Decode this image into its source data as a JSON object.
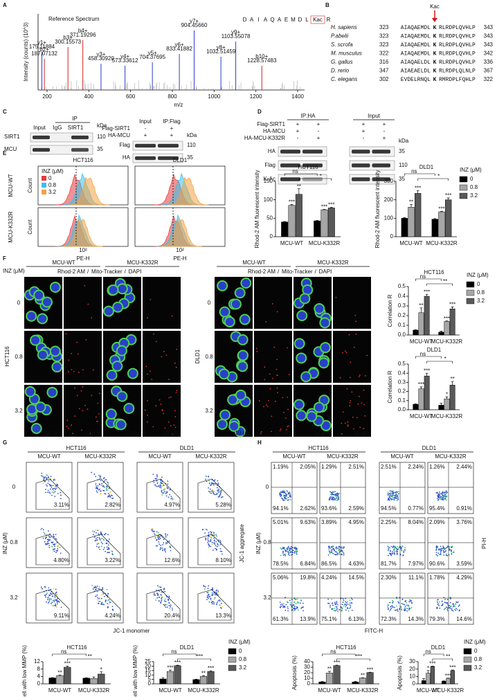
{
  "panels": {
    "A": {
      "letter": "A",
      "title": "Reference Spectrum",
      "y_label": "Intensity (counts) (10^3)",
      "x_label": "m/z",
      "x_ticks": [
        "200",
        "400",
        "600",
        "800",
        "1000",
        "1200",
        "1400"
      ],
      "sequence": [
        "D",
        "A",
        "I",
        "A",
        "Q",
        "A",
        "E",
        "M",
        "D",
        "L",
        "Kac",
        "R"
      ],
      "peaks": [
        {
          "label": "y1+",
          "mz": "175.11884"
        },
        {
          "label": "b2+",
          "mz": "187.07132"
        },
        {
          "label": "b3+",
          "mz": "300.15573"
        },
        {
          "label": "b4+",
          "mz": "371.19296"
        },
        {
          "label": "y3+",
          "mz": "458.30920"
        },
        {
          "label": "y4+",
          "mz": "573.33612"
        },
        {
          "label": "y5+",
          "mz": "704.37695"
        },
        {
          "label": "y6+",
          "mz": "833.41882"
        },
        {
          "label": "y7+",
          "mz": "904.45660"
        },
        {
          "label": "y8+",
          "mz": "1032.51459"
        },
        {
          "label": "y9+",
          "mz": "1103.55078"
        },
        {
          "label": "b10+",
          "mz": "1228.57483"
        }
      ]
    },
    "B": {
      "letter": "B",
      "marker": "Kac",
      "rows": [
        {
          "species": "H. sapiens",
          "start": "323",
          "left": "AIAQAEMDL",
          "site": "K",
          "right": "RLRDPLQVHLP",
          "end": "343"
        },
        {
          "species": "P.abelii",
          "start": "323",
          "left": "AIAQAEMDL",
          "site": "K",
          "right": "RLRDPLQVHLP",
          "end": "343"
        },
        {
          "species": "S. scrofa",
          "start": "323",
          "left": "AIAQAEMDL",
          "site": "K",
          "right": "RLRDPLQVHLP",
          "end": "343"
        },
        {
          "species": "M. musculus",
          "start": "322",
          "left": "AIAQAEMDL",
          "site": "K",
          "right": "RLRDPLQVHLP",
          "end": "342"
        },
        {
          "species": "G. gallus",
          "start": "316",
          "left": "AIAQAELDL",
          "site": "K",
          "right": "RLRDPLQVHLP",
          "end": "336"
        },
        {
          "species": "D. rerio",
          "start": "347",
          "left": "AIAEAELDL",
          "site": "K",
          "right": "RLRDPLQLNLP",
          "end": "367"
        },
        {
          "species": "C. elegans",
          "start": "302",
          "left": "EVDELRNQL",
          "site": "K",
          "right": "RMRDPLFQHLP",
          "end": "322"
        }
      ]
    },
    "C": {
      "letter": "C",
      "left": {
        "group": "IP",
        "lanes": [
          "Input",
          "IgG",
          "SIRT1"
        ],
        "rows": [
          "SIRT1",
          "MCU"
        ],
        "unit": "kDa",
        "sizes": [
          "110",
          "35"
        ]
      },
      "right": {
        "lanes": [
          "Input",
          "IP:Flag"
        ],
        "conditions": [
          {
            "name": "Flag-SIRT1",
            "signs": [
              "-",
              "+"
            ]
          },
          {
            "name": "HA-MCU",
            "signs": [
              "+",
              "+"
            ]
          }
        ],
        "rows": [
          "Flag",
          "HA"
        ],
        "unit": "kDa",
        "sizes": [
          "110",
          "35"
        ]
      }
    },
    "D": {
      "letter": "D",
      "groups": [
        "IP:HA",
        "Input"
      ],
      "conditions": [
        {
          "name": "Flag-SIRT1",
          "signs": [
            "+",
            "+"
          ]
        },
        {
          "name": "HA-MCU",
          "signs": [
            "+",
            "-"
          ]
        },
        {
          "name": "HA-MCU-K332R",
          "signs": [
            "-",
            "+"
          ]
        }
      ],
      "rows": [
        "HA",
        "Flag",
        "K-Ac"
      ],
      "unit": "kDa",
      "sizes": [
        "35",
        "110",
        "35"
      ]
    },
    "E": {
      "letter": "E",
      "columns": [
        "HCT116",
        "DLD1"
      ],
      "rows": [
        "MCU-WT",
        "MCU-K332R"
      ],
      "y_label": "Count",
      "x_label": "PE-H",
      "x_tick": "10²",
      "legend_title": "INZ (μM)",
      "legend": [
        {
          "name": "0",
          "color": "#e8393c"
        },
        {
          "name": "0.8",
          "color": "#35c3ea"
        },
        {
          "name": "3.2",
          "color": "#f4a142"
        }
      ]
    },
    "F": {
      "letter": "F",
      "axis_label": "INZ (μM)",
      "groups": [
        "MCU-WT",
        "MCU-K332R"
      ],
      "stains": [
        "Rhod-2 AM",
        "Mito-Tracker",
        "DAPI"
      ],
      "stain_colors": [
        "#e02020",
        "#2aa02a",
        "#2040d0"
      ],
      "separator": "/",
      "doses": [
        "0",
        "0.8",
        "3.2"
      ],
      "cell_lines": [
        "HCT116",
        "DLD1"
      ],
      "scale_bar": "10 μm"
    },
    "G": {
      "letter": "G",
      "cell_lines": [
        "HCT116",
        "DLD1"
      ],
      "groups": [
        "MCU-WT",
        "MCU-K332R"
      ],
      "axis_label": "INZ (μM)",
      "doses": [
        "0",
        "0.8",
        "3.2"
      ],
      "y_label": "JC-1 aggregate",
      "x_label": "JC-1 monomer",
      "percent": [
        [
          "3.11%",
          "2.82%",
          "4.97%",
          "5.28%"
        ],
        [
          "4.80%",
          "3.22%",
          "12.6%",
          "8.10%"
        ],
        [
          "9.11%",
          "4.24%",
          "20.4%",
          "13.3%"
        ]
      ]
    },
    "H": {
      "letter": "H",
      "cell_lines": [
        "HCT116",
        "DLD1"
      ],
      "groups": [
        "MCU-WT",
        "MCU-K332R"
      ],
      "axis_label": "INZ (μM)",
      "doses": [
        "0",
        "0.8",
        "3.2"
      ],
      "y_label": "PI-H",
      "x_label": "FITC-H",
      "quadrants": [
        [
          [
            "1.19%",
            "2.05%",
            "94.1%",
            "2.62%"
          ],
          [
            "1.29%",
            "2.51%",
            "93.6%",
            "2.59%"
          ],
          [
            "2.51%",
            "2.24%",
            "94.5%",
            "0.77%"
          ],
          [
            "1.26%",
            "2.44%",
            "95.4%",
            "0.91%"
          ]
        ],
        [
          [
            "5.01%",
            "9.63%",
            "78.5%",
            "6.84%"
          ],
          [
            "3.89%",
            "4.95%",
            "86.5%",
            "4.63%"
          ],
          [
            "2.25%",
            "8.04%",
            "81.7%",
            "7.97%"
          ],
          [
            "2.09%",
            "3.76%",
            "90.6%",
            "3.59%"
          ]
        ],
        [
          [
            "5.06%",
            "19.8%",
            "61.3%",
            "13.9%"
          ],
          [
            "4.24%",
            "14.5%",
            "75.1%",
            "6.13%"
          ],
          [
            "2.30%",
            "11.1%",
            "72.3%",
            "14.3%"
          ],
          [
            "1.78%",
            "4.29%",
            "79.3%",
            "14.6%"
          ]
        ]
      ]
    }
  },
  "chart_data": [
    {
      "type": "bar",
      "title": "HCT116",
      "y_label": "Rhod-2 AM fluorescent intensity",
      "categories": [
        "MCU-WT",
        "MCU-K332R"
      ],
      "ylim": [
        0,
        150
      ],
      "yticks": [
        0,
        50,
        100,
        150
      ],
      "series": [
        {
          "color": "#000000",
          "values": [
            40,
            43
          ],
          "errors": [
            1,
            1
          ],
          "stars": [
            null,
            null
          ]
        },
        {
          "color": "#a6a6a6",
          "values": [
            85,
            73
          ],
          "errors": [
            2,
            1
          ],
          "stars": [
            "***",
            "***"
          ]
        },
        {
          "color": "#595959",
          "values": [
            115,
            78
          ],
          "errors": [
            15,
            2
          ],
          "stars": [
            "**",
            "***"
          ]
        }
      ],
      "brackets": [
        "ns",
        "*"
      ]
    },
    {
      "type": "bar",
      "title": "DLD1",
      "y_label": "Rhod-2 AM fluorescent intensity",
      "categories": [
        "MCU-WT",
        "MCU-K332R"
      ],
      "ylim": [
        0,
        300
      ],
      "yticks": [
        0,
        100,
        200,
        300
      ],
      "legend_title": "INZ (μM)",
      "series": [
        {
          "name": "0",
          "color": "#000000",
          "values": [
            100,
            95
          ],
          "errors": [
            3,
            3
          ],
          "stars": [
            null,
            null
          ]
        },
        {
          "name": "0.8",
          "color": "#a6a6a6",
          "values": [
            160,
            135
          ],
          "errors": [
            15,
            3
          ],
          "stars": [
            "**",
            "***"
          ]
        },
        {
          "name": "3.2",
          "color": "#595959",
          "values": [
            235,
            200
          ],
          "errors": [
            15,
            10
          ],
          "stars": [
            "***",
            "***"
          ]
        }
      ],
      "brackets": [
        "ns",
        "*"
      ]
    },
    {
      "type": "bar",
      "title": "HCT116",
      "y_label": "Correlation R",
      "categories": [
        "MCU-WT",
        "MCU-K332R"
      ],
      "ylim": [
        0,
        0.5
      ],
      "yticks": [
        {
          "value": 0,
          "label": "0.0"
        },
        {
          "value": 0.1,
          "label": "0.1"
        },
        {
          "value": 0.2,
          "label": "0.2"
        },
        {
          "value": 0.3,
          "label": "0.3"
        },
        {
          "value": 0.4,
          "label": "0.4"
        },
        {
          "value": 0.5,
          "label": "0.5"
        }
      ],
      "legend_title": "INZ (μM)",
      "series": [
        {
          "name": "0",
          "color": "#000000",
          "values": [
            0.05,
            0.03
          ],
          "errors": [
            0.005,
            0.01
          ],
          "stars": [
            null,
            null
          ]
        },
        {
          "name": "0.8",
          "color": "#a6a6a6",
          "values": [
            0.23,
            0.14
          ],
          "errors": [
            0.05,
            0.005
          ],
          "stars": [
            "**",
            "***"
          ]
        },
        {
          "name": "3.2",
          "color": "#595959",
          "values": [
            0.4,
            0.27
          ],
          "errors": [
            0.02,
            0.02
          ],
          "stars": [
            "***",
            "***"
          ]
        }
      ],
      "brackets": [
        "ns",
        "**"
      ]
    },
    {
      "type": "bar",
      "title": "DLD1",
      "y_label": "Correlation R",
      "categories": [
        "MCU-WT",
        "MCU-K332R"
      ],
      "ylim": [
        0,
        0.5
      ],
      "yticks": [
        {
          "value": 0,
          "label": "0.0"
        },
        {
          "value": 0.1,
          "label": "0.1"
        },
        {
          "value": 0.2,
          "label": "0.2"
        },
        {
          "value": 0.3,
          "label": "0.3"
        },
        {
          "value": 0.4,
          "label": "0.4"
        },
        {
          "value": 0.5,
          "label": "0.5"
        }
      ],
      "series": [
        {
          "color": "#000000",
          "values": [
            0.06,
            0.05
          ],
          "errors": [
            0.005,
            0.02
          ],
          "stars": [
            null,
            null
          ]
        },
        {
          "color": "#a6a6a6",
          "values": [
            0.23,
            0.12
          ],
          "errors": [
            0.02,
            0.02
          ],
          "stars": [
            "***",
            "*"
          ]
        },
        {
          "color": "#595959",
          "values": [
            0.37,
            0.27
          ],
          "errors": [
            0.03,
            0.04
          ],
          "stars": [
            "***",
            "**"
          ]
        }
      ],
      "brackets": [
        "ns",
        "*"
      ]
    },
    {
      "type": "bar",
      "title": "HCT116",
      "y_label": "Cell with low MMP (%)",
      "categories": [
        "MCU-WT",
        "MCU-K332R"
      ],
      "ylim": [
        0,
        12
      ],
      "yticks": [
        0,
        4,
        8,
        12
      ],
      "series": [
        {
          "color": "#000000",
          "values": [
            3.2,
            3.1
          ],
          "errors": [
            0.2,
            0.2
          ],
          "stars": [
            null,
            null
          ]
        },
        {
          "color": "#a6a6a6",
          "values": [
            4.5,
            2.9
          ],
          "errors": [
            0.3,
            0.8
          ],
          "stars": [
            "**",
            null
          ]
        },
        {
          "color": "#595959",
          "values": [
            9,
            5.3
          ],
          "errors": [
            0.6,
            1.2
          ],
          "stars": [
            "***",
            "*"
          ]
        }
      ],
      "brackets": [
        "ns",
        "**"
      ]
    },
    {
      "type": "bar",
      "title": "DLD1",
      "y_label": "Cell with low MMP (%)",
      "categories": [
        "MCU-WT",
        "MCU-K332R"
      ],
      "ylim": [
        0,
        25
      ],
      "yticks": [
        0,
        5,
        10,
        15,
        20,
        25
      ],
      "legend_title": "INZ (μM)",
      "series": [
        {
          "name": "0",
          "color": "#000000",
          "values": [
            5.5,
            4.8
          ],
          "errors": [
            1.5,
            0.5
          ],
          "stars": [
            null,
            null
          ]
        },
        {
          "name": "0.8",
          "color": "#a6a6a6",
          "values": [
            14,
            8.5
          ],
          "errors": [
            1.5,
            0.7
          ],
          "stars": [
            "***",
            "**"
          ]
        },
        {
          "name": "3.2",
          "color": "#595959",
          "values": [
            20.5,
            14
          ],
          "errors": [
            0.5,
            0.8
          ],
          "stars": [
            "***",
            "***"
          ]
        }
      ],
      "brackets": [
        "ns",
        "***"
      ]
    },
    {
      "type": "bar",
      "title": "HCT116",
      "y_label": "Apoptosis (%)",
      "categories": [
        "MCU-WT",
        "MCU-K332R"
      ],
      "ylim": [
        0,
        40
      ],
      "yticks": [
        0,
        10,
        20,
        30,
        40
      ],
      "series": [
        {
          "color": "#000000",
          "values": [
            3.5,
            3.3
          ],
          "errors": [
            0.8,
            1.2
          ],
          "stars": [
            null,
            null
          ]
        },
        {
          "color": "#a6a6a6",
          "values": [
            19.5,
            10.5
          ],
          "errors": [
            3,
            0.5
          ],
          "stars": [
            "**",
            "**"
          ]
        },
        {
          "color": "#595959",
          "values": [
            33,
            20.5
          ],
          "errors": [
            0.8,
            0.5
          ],
          "stars": [
            "***",
            "***"
          ]
        }
      ],
      "brackets": [
        "ns",
        "***"
      ]
    },
    {
      "type": "bar",
      "title": "DLD1",
      "y_label": "Apoptosis (%)",
      "categories": [
        "MCU-WT",
        "MCU-K332R"
      ],
      "ylim": [
        0,
        30
      ],
      "yticks": [
        0,
        10,
        20,
        30
      ],
      "legend_title": "INZ (μM)",
      "series": [
        {
          "name": "0",
          "color": "#000000",
          "values": [
            4.5,
            3.5
          ],
          "errors": [
            2.5,
            0.5
          ],
          "stars": [
            null,
            null
          ]
        },
        {
          "name": "0.8",
          "color": "#a6a6a6",
          "values": [
            14.5,
            7.5
          ],
          "errors": [
            3.5,
            0.3
          ],
          "stars": [
            "*",
            "***"
          ]
        },
        {
          "name": "3.2",
          "color": "#595959",
          "values": [
            23.5,
            18
          ],
          "errors": [
            0.5,
            0.8
          ],
          "stars": [
            "***",
            "***"
          ]
        }
      ],
      "brackets": [
        "ns",
        "**"
      ]
    }
  ]
}
